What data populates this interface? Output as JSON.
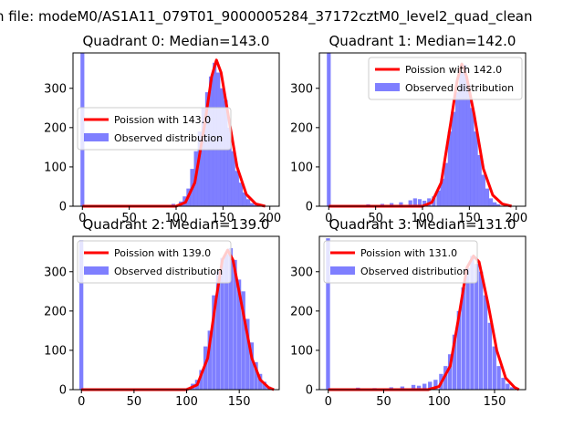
{
  "figure": {
    "suptitle": "n file: modeM0/AS1A11_079T01_9000005284_37172cztM0_level2_quad_clean"
  },
  "colors": {
    "fit_line": "#ff0000",
    "histogram": "#0000ff",
    "histogram_alpha": 0.5
  },
  "chart_data": [
    {
      "type": "bar",
      "title": "Quadrant 0: Median=143.0",
      "xlabel": "",
      "ylabel": "",
      "xlim": [
        -10,
        210
      ],
      "ylim": [
        0,
        390
      ],
      "xticks": [
        0,
        50,
        100,
        150,
        200
      ],
      "xtick_labels": [
        "0",
        "50",
        "100",
        "150",
        "200"
      ],
      "yticks": [
        0,
        100,
        200,
        300
      ],
      "ytick_labels": [
        "0",
        "100",
        "200",
        "300"
      ],
      "bin_width": 4.1,
      "legend": {
        "placement": "center-left",
        "entries": [
          "Poission with 143.0",
          "Observed distribution"
        ]
      },
      "hist": {
        "name": "Observed distribution",
        "bins": [
          [
            -2,
            390
          ],
          [
            95,
            6
          ],
          [
            103,
            12
          ],
          [
            107,
            25
          ],
          [
            111,
            45
          ],
          [
            115,
            95
          ],
          [
            119,
            140
          ],
          [
            123,
            190
          ],
          [
            127,
            250
          ],
          [
            131,
            290
          ],
          [
            135,
            330
          ],
          [
            139,
            365
          ],
          [
            143,
            340
          ],
          [
            147,
            300
          ],
          [
            151,
            270
          ],
          [
            155,
            200
          ],
          [
            159,
            140
          ],
          [
            163,
            90
          ],
          [
            167,
            60
          ],
          [
            171,
            35
          ],
          [
            175,
            18
          ],
          [
            179,
            8
          ],
          [
            183,
            3
          ]
        ]
      },
      "fit": {
        "name": "Poission with 143.0",
        "points": [
          [
            0,
            0
          ],
          [
            100,
            0
          ],
          [
            110,
            10
          ],
          [
            120,
            60
          ],
          [
            130,
            200
          ],
          [
            138,
            330
          ],
          [
            143,
            372
          ],
          [
            148,
            340
          ],
          [
            155,
            240
          ],
          [
            165,
            100
          ],
          [
            175,
            30
          ],
          [
            185,
            6
          ],
          [
            195,
            0
          ]
        ]
      }
    },
    {
      "type": "bar",
      "title": "Quadrant 1: Median=142.0",
      "xlabel": "",
      "ylabel": "",
      "xlim": [
        -10,
        210
      ],
      "ylim": [
        0,
        390
      ],
      "xticks": [
        0,
        50,
        100,
        150,
        200
      ],
      "xtick_labels": [
        "0",
        "50",
        "100",
        "150",
        "200"
      ],
      "yticks": [
        0,
        100,
        200,
        300
      ],
      "ytick_labels": [
        "0",
        "100",
        "200",
        "300"
      ],
      "bin_width": 4.1,
      "legend": {
        "placement": "top-right",
        "entries": [
          "Poission with 142.0",
          "Observed distribution"
        ]
      },
      "hist": {
        "name": "Observed distribution",
        "bins": [
          [
            -2,
            390
          ],
          [
            40,
            5
          ],
          [
            55,
            6
          ],
          [
            65,
            8
          ],
          [
            75,
            10
          ],
          [
            85,
            15
          ],
          [
            90,
            20
          ],
          [
            95,
            18
          ],
          [
            100,
            14
          ],
          [
            105,
            20
          ],
          [
            110,
            25
          ],
          [
            115,
            40
          ],
          [
            119,
            70
          ],
          [
            123,
            110
          ],
          [
            127,
            190
          ],
          [
            131,
            240
          ],
          [
            135,
            290
          ],
          [
            139,
            340
          ],
          [
            143,
            360
          ],
          [
            147,
            310
          ],
          [
            151,
            250
          ],
          [
            155,
            190
          ],
          [
            159,
            130
          ],
          [
            163,
            80
          ],
          [
            167,
            45
          ],
          [
            171,
            20
          ],
          [
            175,
            10
          ],
          [
            179,
            5
          ]
        ]
      },
      "fit": {
        "name": "Poission with 142.0",
        "points": [
          [
            0,
            0
          ],
          [
            100,
            0
          ],
          [
            110,
            10
          ],
          [
            120,
            60
          ],
          [
            130,
            210
          ],
          [
            137,
            320
          ],
          [
            142,
            362
          ],
          [
            147,
            330
          ],
          [
            155,
            235
          ],
          [
            165,
            95
          ],
          [
            175,
            28
          ],
          [
            185,
            6
          ],
          [
            195,
            0
          ]
        ]
      }
    },
    {
      "type": "bar",
      "title": "Quadrant 2: Median=139.0",
      "xlabel": "",
      "ylabel": "",
      "xlim": [
        -8,
        188
      ],
      "ylim": [
        0,
        390
      ],
      "xticks": [
        0,
        50,
        100,
        150
      ],
      "xtick_labels": [
        "0",
        "50",
        "100",
        "150"
      ],
      "yticks": [
        0,
        100,
        200,
        300
      ],
      "ytick_labels": [
        "0",
        "100",
        "200",
        "300"
      ],
      "bin_width": 3.8,
      "legend": {
        "placement": "top-left",
        "entries": [
          "Poission with 139.0",
          "Observed distribution"
        ]
      },
      "hist": {
        "name": "Observed distribution",
        "bins": [
          [
            -2,
            380
          ],
          [
            100,
            5
          ],
          [
            104,
            15
          ],
          [
            108,
            25
          ],
          [
            112,
            50
          ],
          [
            116,
            110
          ],
          [
            120,
            150
          ],
          [
            124,
            240
          ],
          [
            128,
            300
          ],
          [
            132,
            335
          ],
          [
            136,
            345
          ],
          [
            140,
            360
          ],
          [
            144,
            330
          ],
          [
            148,
            280
          ],
          [
            152,
            250
          ],
          [
            156,
            180
          ],
          [
            160,
            120
          ],
          [
            164,
            70
          ],
          [
            168,
            40
          ],
          [
            172,
            20
          ],
          [
            176,
            8
          ]
        ]
      },
      "fit": {
        "name": "Poission with 139.0",
        "points": [
          [
            0,
            0
          ],
          [
            100,
            0
          ],
          [
            110,
            12
          ],
          [
            120,
            80
          ],
          [
            128,
            230
          ],
          [
            134,
            330
          ],
          [
            139,
            355
          ],
          [
            144,
            330
          ],
          [
            152,
            220
          ],
          [
            162,
            80
          ],
          [
            170,
            25
          ],
          [
            178,
            5
          ],
          [
            183,
            0
          ]
        ]
      }
    },
    {
      "type": "bar",
      "title": "Quadrant 3: Median=131.0",
      "xlabel": "",
      "ylabel": "",
      "xlim": [
        -8,
        178
      ],
      "ylim": [
        0,
        390
      ],
      "xticks": [
        0,
        50,
        100,
        150
      ],
      "xtick_labels": [
        "0",
        "50",
        "100",
        "150"
      ],
      "yticks": [
        0,
        100,
        200,
        300
      ],
      "ytick_labels": [
        "0",
        "100",
        "200",
        "300"
      ],
      "bin_width": 3.6,
      "legend": {
        "placement": "top-left",
        "entries": [
          "Poission with 131.0",
          "Observed distribution"
        ]
      },
      "hist": {
        "name": "Observed distribution",
        "bins": [
          [
            -2,
            385
          ],
          [
            25,
            5
          ],
          [
            40,
            4
          ],
          [
            55,
            6
          ],
          [
            65,
            8
          ],
          [
            75,
            12
          ],
          [
            80,
            10
          ],
          [
            85,
            15
          ],
          [
            90,
            20
          ],
          [
            95,
            25
          ],
          [
            100,
            40
          ],
          [
            104,
            60
          ],
          [
            108,
            90
          ],
          [
            112,
            140
          ],
          [
            116,
            200
          ],
          [
            120,
            260
          ],
          [
            124,
            310
          ],
          [
            128,
            340
          ],
          [
            132,
            320
          ],
          [
            136,
            300
          ],
          [
            140,
            240
          ],
          [
            144,
            170
          ],
          [
            148,
            110
          ],
          [
            152,
            60
          ],
          [
            156,
            30
          ],
          [
            160,
            15
          ],
          [
            164,
            6
          ]
        ]
      },
      "fit": {
        "name": "Poission with 131.0",
        "points": [
          [
            0,
            0
          ],
          [
            90,
            0
          ],
          [
            100,
            8
          ],
          [
            110,
            60
          ],
          [
            118,
            190
          ],
          [
            125,
            310
          ],
          [
            131,
            340
          ],
          [
            136,
            325
          ],
          [
            144,
            220
          ],
          [
            152,
            100
          ],
          [
            160,
            30
          ],
          [
            168,
            6
          ],
          [
            172,
            0
          ]
        ]
      }
    }
  ]
}
